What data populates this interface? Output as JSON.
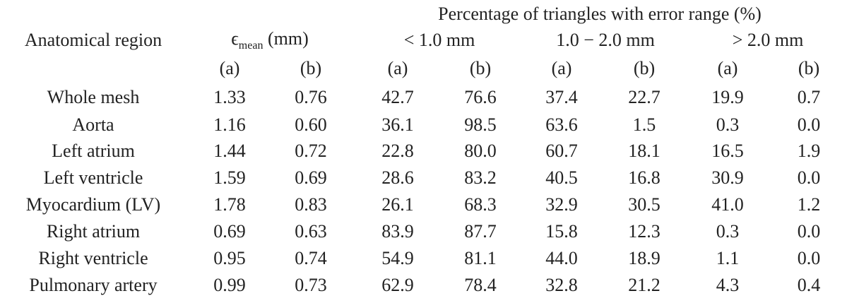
{
  "table": {
    "title": "Percentage of triangles with error range (%)",
    "region_header": "Anatomical region",
    "error_header": {
      "symbol": "ϵ",
      "subscript": "mean",
      "unit": "(mm)"
    },
    "groups": [
      "< 1.0 mm",
      "1.0 − 2.0 mm",
      "> 2.0 mm"
    ],
    "subheaders": [
      "(a)",
      "(b)",
      "(a)",
      "(b)",
      "(a)",
      "(b)",
      "(a)",
      "(b)"
    ],
    "rows": [
      [
        "Whole mesh",
        "1.33",
        "0.76",
        "42.7",
        "76.6",
        "37.4",
        "22.7",
        "19.9",
        "0.7"
      ],
      [
        "Aorta",
        "1.16",
        "0.60",
        "36.1",
        "98.5",
        "63.6",
        "1.5",
        "0.3",
        "0.0"
      ],
      [
        "Left atrium",
        "1.44",
        "0.72",
        "22.8",
        "80.0",
        "60.7",
        "18.1",
        "16.5",
        "1.9"
      ],
      [
        "Left ventricle",
        "1.59",
        "0.69",
        "28.6",
        "83.2",
        "40.5",
        "16.8",
        "30.9",
        "0.0"
      ],
      [
        "Myocardium (LV)",
        "1.78",
        "0.83",
        "26.1",
        "68.3",
        "32.9",
        "30.5",
        "41.0",
        "1.2"
      ],
      [
        "Right atrium",
        "0.69",
        "0.63",
        "83.9",
        "87.7",
        "15.8",
        "12.3",
        "0.3",
        "0.0"
      ],
      [
        "Right ventricle",
        "0.95",
        "0.74",
        "54.9",
        "81.1",
        "44.0",
        "18.9",
        "1.1",
        "0.0"
      ],
      [
        "Pulmonary artery",
        "0.99",
        "0.73",
        "62.9",
        "78.4",
        "32.8",
        "21.2",
        "4.3",
        "0.4"
      ]
    ]
  }
}
